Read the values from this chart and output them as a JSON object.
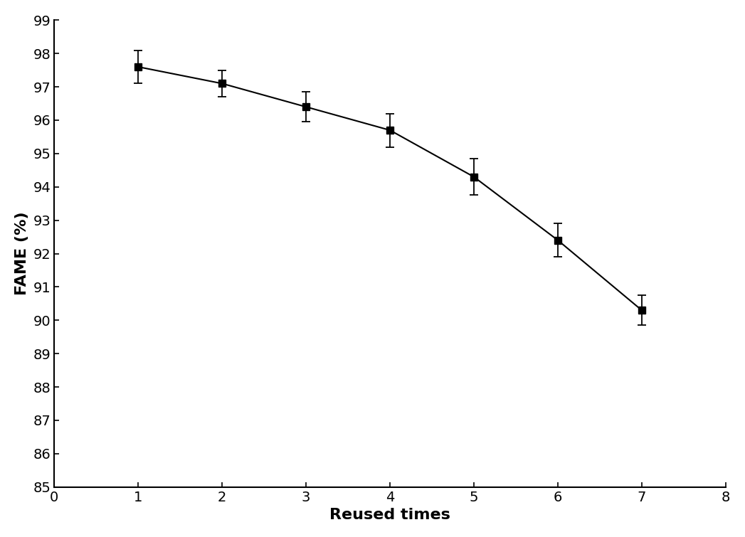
{
  "x": [
    1,
    2,
    3,
    4,
    5,
    6,
    7
  ],
  "y": [
    97.6,
    97.1,
    96.4,
    95.7,
    94.3,
    92.4,
    90.3
  ],
  "y_err": [
    0.5,
    0.4,
    0.45,
    0.5,
    0.55,
    0.5,
    0.45
  ],
  "xlabel": "Reused times",
  "ylabel": "FAME (%)",
  "xlim": [
    0,
    8
  ],
  "ylim": [
    85,
    99
  ],
  "xticks": [
    0,
    1,
    2,
    3,
    4,
    5,
    6,
    7,
    8
  ],
  "yticks": [
    85,
    86,
    87,
    88,
    89,
    90,
    91,
    92,
    93,
    94,
    95,
    96,
    97,
    98,
    99
  ],
  "line_color": "#000000",
  "marker": "s",
  "marker_size": 7,
  "marker_color": "#000000",
  "line_width": 1.5,
  "xlabel_fontsize": 16,
  "ylabel_fontsize": 16,
  "tick_fontsize": 14,
  "background_color": "#ffffff"
}
